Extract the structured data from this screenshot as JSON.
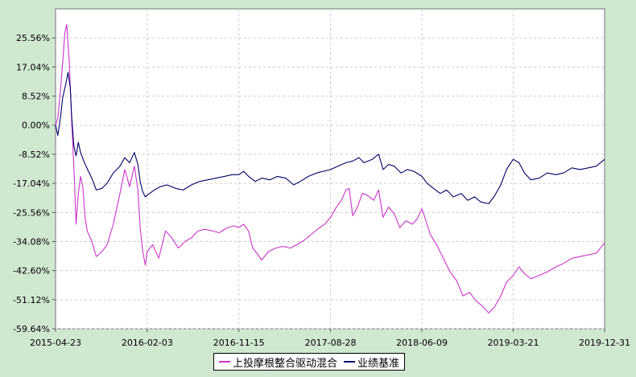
{
  "chart_data": {
    "type": "line",
    "title": "",
    "xlabel": "",
    "ylabel": "",
    "x_ticks": [
      "2015-04-23",
      "2016-02-03",
      "2016-11-15",
      "2017-08-28",
      "2018-06-09",
      "2019-03-21",
      "2019-12-31"
    ],
    "y_ticks": [
      "25.56%",
      "17.04%",
      "8.52%",
      "0.00%",
      "-8.52%",
      "-17.04%",
      "-25.56%",
      "-34.08%",
      "-42.60%",
      "-51.12%",
      "-59.64%"
    ],
    "y_tick_values": [
      25.56,
      17.04,
      8.52,
      0,
      -8.52,
      -17.04,
      -25.56,
      -34.08,
      -42.6,
      -51.12,
      -59.64
    ],
    "ylim": [
      -59.64,
      34.08
    ],
    "xlim": [
      "2015-04-23",
      "2019-12-31"
    ],
    "grid": true,
    "legend_position": "bottom-center",
    "series": [
      {
        "name": "上投摩根整合驱动混合",
        "color": "#cc33cc",
        "points": [
          [
            "2015-04-23",
            0.0
          ],
          [
            "2015-04-30",
            2.0
          ],
          [
            "2015-05-08",
            10.0
          ],
          [
            "2015-05-15",
            18.0
          ],
          [
            "2015-05-22",
            27.0
          ],
          [
            "2015-05-28",
            29.5
          ],
          [
            "2015-06-01",
            24.0
          ],
          [
            "2015-06-05",
            18.0
          ],
          [
            "2015-06-12",
            2.0
          ],
          [
            "2015-06-19",
            -12.0
          ],
          [
            "2015-06-26",
            -29.0
          ],
          [
            "2015-07-03",
            -20.0
          ],
          [
            "2015-07-10",
            -15.0
          ],
          [
            "2015-07-17",
            -18.0
          ],
          [
            "2015-07-24",
            -27.0
          ],
          [
            "2015-07-31",
            -31.0
          ],
          [
            "2015-08-14",
            -34.0
          ],
          [
            "2015-08-28",
            -38.5
          ],
          [
            "2015-09-15",
            -37.0
          ],
          [
            "2015-10-01",
            -35.0
          ],
          [
            "2015-10-20",
            -29.0
          ],
          [
            "2015-11-10",
            -20.0
          ],
          [
            "2015-11-25",
            -13.0
          ],
          [
            "2015-12-10",
            -18.0
          ],
          [
            "2015-12-25",
            -12.0
          ],
          [
            "2016-01-05",
            -19.0
          ],
          [
            "2016-01-12",
            -30.0
          ],
          [
            "2016-01-20",
            -37.0
          ],
          [
            "2016-01-28",
            -41.0
          ],
          [
            "2016-02-03",
            -37.0
          ],
          [
            "2016-02-20",
            -35.0
          ],
          [
            "2016-03-10",
            -39.0
          ],
          [
            "2016-03-31",
            -31.0
          ],
          [
            "2016-04-20",
            -33.0
          ],
          [
            "2016-05-10",
            -36.0
          ],
          [
            "2016-06-01",
            -34.0
          ],
          [
            "2016-06-20",
            -33.0
          ],
          [
            "2016-07-10",
            -31.0
          ],
          [
            "2016-08-01",
            -30.5
          ],
          [
            "2016-08-25",
            -31.0
          ],
          [
            "2016-09-15",
            -31.5
          ],
          [
            "2016-10-10",
            -30.0
          ],
          [
            "2016-11-01",
            -29.5
          ],
          [
            "2016-11-15",
            -30.0
          ],
          [
            "2016-11-30",
            -29.0
          ],
          [
            "2016-12-15",
            -31.0
          ],
          [
            "2016-12-28",
            -36.0
          ],
          [
            "2017-01-10",
            -37.5
          ],
          [
            "2017-01-25",
            -39.5
          ],
          [
            "2017-02-15",
            -37.0
          ],
          [
            "2017-03-10",
            -36.0
          ],
          [
            "2017-04-01",
            -35.5
          ],
          [
            "2017-04-25",
            -36.0
          ],
          [
            "2017-05-15",
            -35.0
          ],
          [
            "2017-06-10",
            -33.5
          ],
          [
            "2017-07-05",
            -31.5
          ],
          [
            "2017-07-25",
            -30.0
          ],
          [
            "2017-08-10",
            -29.0
          ],
          [
            "2017-08-28",
            -27.0
          ],
          [
            "2017-09-15",
            -24.0
          ],
          [
            "2017-10-01",
            -22.0
          ],
          [
            "2017-10-15",
            -19.0
          ],
          [
            "2017-10-25",
            -18.5
          ],
          [
            "2017-11-05",
            -26.5
          ],
          [
            "2017-11-20",
            -24.0
          ],
          [
            "2017-12-05",
            -20.0
          ],
          [
            "2017-12-20",
            -20.5
          ],
          [
            "2018-01-10",
            -22.0
          ],
          [
            "2018-01-25",
            -19.0
          ],
          [
            "2018-02-08",
            -27.0
          ],
          [
            "2018-02-25",
            -24.0
          ],
          [
            "2018-03-15",
            -26.0
          ],
          [
            "2018-04-01",
            -30.0
          ],
          [
            "2018-04-20",
            -28.0
          ],
          [
            "2018-05-10",
            -29.0
          ],
          [
            "2018-05-25",
            -27.5
          ],
          [
            "2018-06-09",
            -24.5
          ],
          [
            "2018-06-20",
            -27.5
          ],
          [
            "2018-07-05",
            -32.0
          ],
          [
            "2018-07-25",
            -35.0
          ],
          [
            "2018-08-15",
            -39.0
          ],
          [
            "2018-09-05",
            -43.0
          ],
          [
            "2018-09-25",
            -45.5
          ],
          [
            "2018-10-15",
            -50.0
          ],
          [
            "2018-11-05",
            -49.0
          ],
          [
            "2018-11-25",
            -51.5
          ],
          [
            "2018-12-15",
            -53.0
          ],
          [
            "2019-01-03",
            -55.0
          ],
          [
            "2019-01-20",
            -53.5
          ],
          [
            "2019-02-10",
            -50.0
          ],
          [
            "2019-02-28",
            -46.0
          ],
          [
            "2019-03-21",
            -44.0
          ],
          [
            "2019-04-08",
            -41.5
          ],
          [
            "2019-04-25",
            -43.5
          ],
          [
            "2019-05-15",
            -45.0
          ],
          [
            "2019-06-10",
            -44.0
          ],
          [
            "2019-07-05",
            -43.0
          ],
          [
            "2019-08-01",
            -41.5
          ],
          [
            "2019-08-25",
            -40.5
          ],
          [
            "2019-09-20",
            -39.0
          ],
          [
            "2019-10-15",
            -38.5
          ],
          [
            "2019-11-10",
            -38.0
          ],
          [
            "2019-12-05",
            -37.5
          ],
          [
            "2019-12-31",
            -34.5
          ]
        ]
      },
      {
        "name": "业绩基准",
        "color": "#000066",
        "points": [
          [
            "2015-04-23",
            0.0
          ],
          [
            "2015-04-30",
            -3.0
          ],
          [
            "2015-05-08",
            2.0
          ],
          [
            "2015-05-15",
            8.0
          ],
          [
            "2015-05-25",
            12.0
          ],
          [
            "2015-06-01",
            15.5
          ],
          [
            "2015-06-08",
            11.0
          ],
          [
            "2015-06-12",
            3.0
          ],
          [
            "2015-06-19",
            -6.0
          ],
          [
            "2015-06-26",
            -9.0
          ],
          [
            "2015-07-03",
            -5.0
          ],
          [
            "2015-07-10",
            -8.0
          ],
          [
            "2015-07-20",
            -10.5
          ],
          [
            "2015-08-01",
            -13.0
          ],
          [
            "2015-08-14",
            -15.5
          ],
          [
            "2015-08-28",
            -19.0
          ],
          [
            "2015-09-15",
            -18.5
          ],
          [
            "2015-10-01",
            -17.0
          ],
          [
            "2015-10-20",
            -14.0
          ],
          [
            "2015-11-10",
            -12.0
          ],
          [
            "2015-11-25",
            -9.5
          ],
          [
            "2015-12-10",
            -11.0
          ],
          [
            "2015-12-25",
            -8.0
          ],
          [
            "2016-01-05",
            -11.5
          ],
          [
            "2016-01-12",
            -16.5
          ],
          [
            "2016-01-20",
            -19.5
          ],
          [
            "2016-01-28",
            -21.0
          ],
          [
            "2016-02-03",
            -20.5
          ],
          [
            "2016-02-25",
            -19.0
          ],
          [
            "2016-03-15",
            -18.0
          ],
          [
            "2016-04-05",
            -17.5
          ],
          [
            "2016-05-01",
            -18.5
          ],
          [
            "2016-05-25",
            -19.0
          ],
          [
            "2016-06-20",
            -17.5
          ],
          [
            "2016-07-15",
            -16.5
          ],
          [
            "2016-08-10",
            -16.0
          ],
          [
            "2016-09-05",
            -15.5
          ],
          [
            "2016-10-01",
            -15.0
          ],
          [
            "2016-10-25",
            -14.5
          ],
          [
            "2016-11-15",
            -14.5
          ],
          [
            "2016-11-30",
            -13.5
          ],
          [
            "2016-12-15",
            -15.0
          ],
          [
            "2017-01-05",
            -16.5
          ],
          [
            "2017-01-25",
            -15.5
          ],
          [
            "2017-02-20",
            -16.0
          ],
          [
            "2017-03-15",
            -15.0
          ],
          [
            "2017-04-10",
            -15.5
          ],
          [
            "2017-05-05",
            -17.5
          ],
          [
            "2017-05-25",
            -16.5
          ],
          [
            "2017-06-20",
            -15.0
          ],
          [
            "2017-07-15",
            -14.0
          ],
          [
            "2017-08-05",
            -13.5
          ],
          [
            "2017-08-28",
            -13.0
          ],
          [
            "2017-09-20",
            -12.0
          ],
          [
            "2017-10-15",
            -11.0
          ],
          [
            "2017-11-05",
            -10.5
          ],
          [
            "2017-11-25",
            -9.5
          ],
          [
            "2017-12-10",
            -11.0
          ],
          [
            "2018-01-05",
            -10.0
          ],
          [
            "2018-01-25",
            -8.5
          ],
          [
            "2018-02-08",
            -13.0
          ],
          [
            "2018-02-25",
            -11.5
          ],
          [
            "2018-03-15",
            -12.0
          ],
          [
            "2018-04-05",
            -14.0
          ],
          [
            "2018-04-25",
            -13.0
          ],
          [
            "2018-05-15",
            -13.5
          ],
          [
            "2018-06-09",
            -15.0
          ],
          [
            "2018-06-25",
            -17.0
          ],
          [
            "2018-07-15",
            -18.5
          ],
          [
            "2018-08-05",
            -20.0
          ],
          [
            "2018-08-25",
            -19.0
          ],
          [
            "2018-09-15",
            -21.0
          ],
          [
            "2018-10-10",
            -20.0
          ],
          [
            "2018-10-30",
            -22.0
          ],
          [
            "2018-11-20",
            -21.0
          ],
          [
            "2018-12-10",
            -22.5
          ],
          [
            "2019-01-03",
            -23.0
          ],
          [
            "2019-01-20",
            -21.0
          ],
          [
            "2019-02-10",
            -17.5
          ],
          [
            "2019-02-28",
            -13.0
          ],
          [
            "2019-03-10",
            -11.5
          ],
          [
            "2019-03-21",
            -10.0
          ],
          [
            "2019-04-08",
            -11.0
          ],
          [
            "2019-04-25",
            -14.0
          ],
          [
            "2019-05-15",
            -16.0
          ],
          [
            "2019-06-10",
            -15.5
          ],
          [
            "2019-07-05",
            -14.0
          ],
          [
            "2019-08-01",
            -14.5
          ],
          [
            "2019-08-25",
            -14.0
          ],
          [
            "2019-09-20",
            -12.5
          ],
          [
            "2019-10-15",
            -13.0
          ],
          [
            "2019-11-10",
            -12.5
          ],
          [
            "2019-12-05",
            -12.0
          ],
          [
            "2019-12-31",
            -10.0
          ]
        ]
      }
    ]
  }
}
